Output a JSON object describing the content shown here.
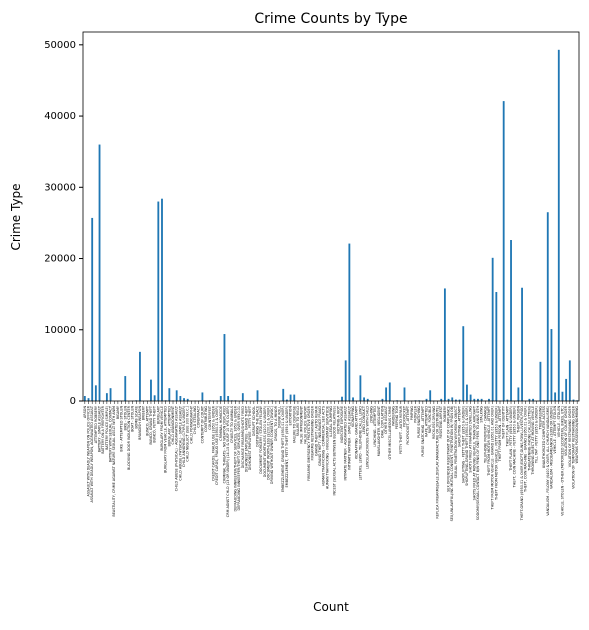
{
  "chart_data": {
    "type": "bar",
    "title": "Crime Counts by Type",
    "x_label": "Count",
    "y_label": "Crime Type",
    "color": "#1f77b4",
    "categories": [
      "ARSON",
      "ASSAULT WITH DEADLY WEAPON ON POLICE OFFICER",
      "ASSAULT WITH DEADLY WEAPON, AGGRAVATED ASSAULT",
      "ATTEMPTED ROBBERY",
      "BATTERY - SIMPLE ASSAULT",
      "BATTERY ON A FIREFIGHTER",
      "BATTERY POLICE (SIMPLE)",
      "BATTERY WITH SEXUAL CONTACT",
      "BEASTIALITY, CRIME AGAINST NATURE SEXUAL ASSLT WITH ANIM",
      "BIGAMY",
      "BIKE - ATTEMPTED STOLEN",
      "BIKE - STOLEN",
      "BLOCKING DOOR INDUCTION CENTER",
      "BOAT - STOLEN",
      "BOMB SCARE",
      "BRANDISH WEAPON",
      "BRIBERY",
      "BUNCO, ATTEMPT",
      "BUNCO, GRAND THEFT",
      "BUNCO, PETTY THEFT",
      "BURGLARY",
      "BURGLARY FROM VEHICLE",
      "BURGLARY FROM VEHICLE, ATTEMPTED",
      "BURGLARY, ATTEMPTED",
      "CHILD ABANDONMENT",
      "CHILD ABUSE (PHYSICAL) - AGGRAVATED ASSAULT",
      "CHILD ABUSE (PHYSICAL) - SIMPLE ASSAULT",
      "CHILD ANNOYING (17YRS & UNDER)",
      "CHILD NEGLECT (SEE 300 W.I.C.)",
      "CHILD PORNOGRAPHY",
      "CHILD STEALING",
      "CONSPIRACY",
      "CONTEMPT OF COURT",
      "CONTRIBUTING",
      "COUNTERFEIT",
      "CREDIT CARDS, FRAUD USE ($950 & UNDER",
      "CREDIT CARDS, FRAUD USE ($950.01 & OVER)",
      "CRIMINAL HOMICIDE",
      "CRIMINAL THREATS - NO WEAPON DISPLAYED",
      "CRM AGNST CHLD (13 OR UNDER) (14-15 & SUSP 10 YRS OLDER)",
      "CRUELTY TO ANIMALS",
      "DEFRAUDING INNKEEPER/THEFT OF SERVICES, $950 & UNDER",
      "DEFRAUDING INNKEEPER/THEFT OF SERVICES, OVER $950.01",
      "DISCHARGE FIREARMS/SHOTS FIRED",
      "DISHONEST EMPLOYEE - GRAND THEFT",
      "DISHONEST EMPLOYEE - PETTY THEFT",
      "DISRUPT SCHOOL",
      "DISTURBING THE PEACE",
      "DOCUMENT FORGERY / STOLEN FELONY",
      "DOCUMENT WORTHLESS ($200 & UNDER)",
      "DOCUMENT WORTHLESS ($200.01 & OVER)",
      "DRIVING WITHOUT OWNER CONSENT (DWOC)",
      "DRUGS, TO A MINOR",
      "DRUNK ROLL",
      "EMBEZZLEMENT, GRAND THEFT ($950.01 & OVER)",
      "EMBEZZLEMENT, PETTY THEFT ($950 & UNDER)",
      "EXTORTION",
      "FAILURE TO DISPERSE",
      "FAILURE TO YIELD",
      "FALSE IMPRISONMENT",
      "FALSE POLICE REPORT",
      "FIREARMS EMERGENCY PROTECTIVE ORDER",
      "FIREARMS RESTRAINING ORDER",
      "GRAND THEFT / AUTO REPAIR",
      "GRAND THEFT / INSURANCE FRAUD",
      "HUMAN TRAFFICKING - COMMERCIAL SEX ACTS",
      "HUMAN TRAFFICKING - INVOLUNTARY SERVITUDE",
      "ILLEGAL DUMPING",
      "INCEST (SEXUAL ACTS BETWEEN BLOOD RELATIVES)",
      "INCITING A RIOT",
      "INDECENT EXPOSURE",
      "INTIMATE PARTNER - AGGRAVATED ASSAULT",
      "INTIMATE PARTNER - SIMPLE ASSAULT",
      "KIDNAPPING",
      "KIDNAPPING - GRAND ATTEMPT",
      "LETTERS, LEWD - TELEPHONE CALLS, LEWD",
      "LEWD CONDUCT",
      "LEWD/LASCIVIOUS ACTS WITH CHILD",
      "LYNCHING",
      "LYNCHING - ATTEMPTED",
      "MANSLAUGHTER, NEGLIGENT",
      "ORAL COPULATION",
      "OTHER ASSAULT",
      "OTHER MISCELLANEOUS CRIME",
      "PANDERING",
      "PEEPING TOM",
      "PETTY THEFT - AUTO REPAIR",
      "PICKPOCKET",
      "PICKPOCKET, ATTEMPT",
      "PIMPING",
      "PROWLER",
      "PURSE SNATCHING",
      "PURSE SNATCHING - ATTEMPT",
      "RAPE, ATTEMPTED",
      "RAPE, FORCIBLE",
      "RECKLESS DRIVING",
      "REPLICA FIREARMS(SALE,DISPLAY,MANUFACTURE OR DISTRIBUTE)",
      "RESISTING ARREST",
      "ROBBERY",
      "SEX OFFENDER REGISTRANT OUT OF COMPLIANCE",
      "SEX,UNLAWFUL(INC MUTUAL CONSENT, PENETRATION W/ FRGN OBJ",
      "SEXUAL PENETRATION W/FOREIGN OBJECT",
      "SHOPLIFTING - ATTEMPT",
      "SHOPLIFTING - PETTY THEFT ($950 & UNDER)",
      "SHOPLIFTING-GRAND THEFT ($950.01 & OVER)",
      "SHOTS FIRED AT INHABITED DWELLING",
      "SHOTS FIRED AT MOVING VEHICLE, TRAIN OR AIRCRAFT",
      "SODOMY/SEXUAL CONTACT B/W PENIS OF ONE PERS TO ANUS OTH",
      "STALKING",
      "TELEPHONE PROPERTY - DAMAGE",
      "THEFT FROM MOTOR VEHICLE - ATTEMPT",
      "THEFT FROM MOTOR VEHICLE - GRAND ($950.01 AND OVER)",
      "THEFT FROM MOTOR VEHICLE - PETTY ($950 & UNDER)",
      "THEFT FROM PERSON - ATTEMPT",
      "THEFT OF IDENTITY",
      "THEFT PLAIN - ATTEMPT",
      "THEFT PLAIN - PETTY ($950 & UNDER)",
      "THEFT, COIN MACHINE - PETTY ($950 & UNDER)",
      "THEFT, PERSON",
      "THEFT-GRAND ($950.01 & OVER)EXCPT,GUNS,FOWL,LIVESTK,PROD",
      "THEFT, COIN MACHINE - GRAND ($950.01 & OVER)",
      "THREATENING PHONE CALLS/LETTERS",
      "THROWING OBJECT AT MOVING VEHICLE",
      "TILL TAP - PETTY ($950 & UNDER)",
      "TRESPASSING",
      "UNAUTHORIZED COMPUTER ACCESS",
      "VANDALISM - FELONY ($400 & OVER, ALL CHURCH VANDALISMS)",
      "VANDALISM - MISDEAMEANOR ($399 OR UNDER)",
      "VEHICLE - ATTEMPT STOLEN",
      "VEHICLE - STOLEN",
      "VEHICLE, STOLEN - OTHER (MOTORIZED SCOOTERS, BIKES, ETC)",
      "VIOLATION OF COURT ORDER",
      "VIOLATION OF RESTRAINING ORDER",
      "VIOLATION OF TEMPORARY RESTRAINING ORDER",
      "WEAPONS POSSESSION/BOMBING"
    ],
    "values": [
      700,
      400,
      25700,
      2200,
      36000,
      20,
      1100,
      1800,
      10,
      20,
      60,
      3500,
      5,
      50,
      100,
      6900,
      20,
      50,
      3000,
      800,
      28000,
      28400,
      100,
      1800,
      80,
      1500,
      700,
      400,
      300,
      50,
      60,
      50,
      1200,
      20,
      100,
      80,
      80,
      700,
      9400,
      700,
      100,
      100,
      20,
      1100,
      50,
      30,
      20,
      1500,
      100,
      20,
      50,
      100,
      10,
      10,
      1700,
      200,
      900,
      900,
      10,
      100,
      100,
      20,
      10,
      20,
      20,
      30,
      10,
      10,
      20,
      10,
      600,
      5700,
      22100,
      500,
      20,
      3600,
      500,
      300,
      10,
      10,
      20,
      300,
      1900,
      2600,
      20,
      100,
      30,
      1900,
      20,
      50,
      100,
      100,
      30,
      300,
      1500,
      50,
      20,
      300,
      15800,
      300,
      500,
      200,
      200,
      10500,
      2300,
      900,
      300,
      300,
      300,
      50,
      300,
      20100,
      15300,
      50,
      42100,
      200,
      22600,
      50,
      1900,
      15900,
      20,
      300,
      300,
      10,
      5500,
      100,
      26500,
      10100,
      1200,
      49300,
      1300,
      3100,
      5700,
      200,
      100
    ],
    "ylim": [
      0,
      51800
    ],
    "yticks": [
      0,
      10000,
      20000,
      30000,
      40000,
      50000
    ]
  }
}
